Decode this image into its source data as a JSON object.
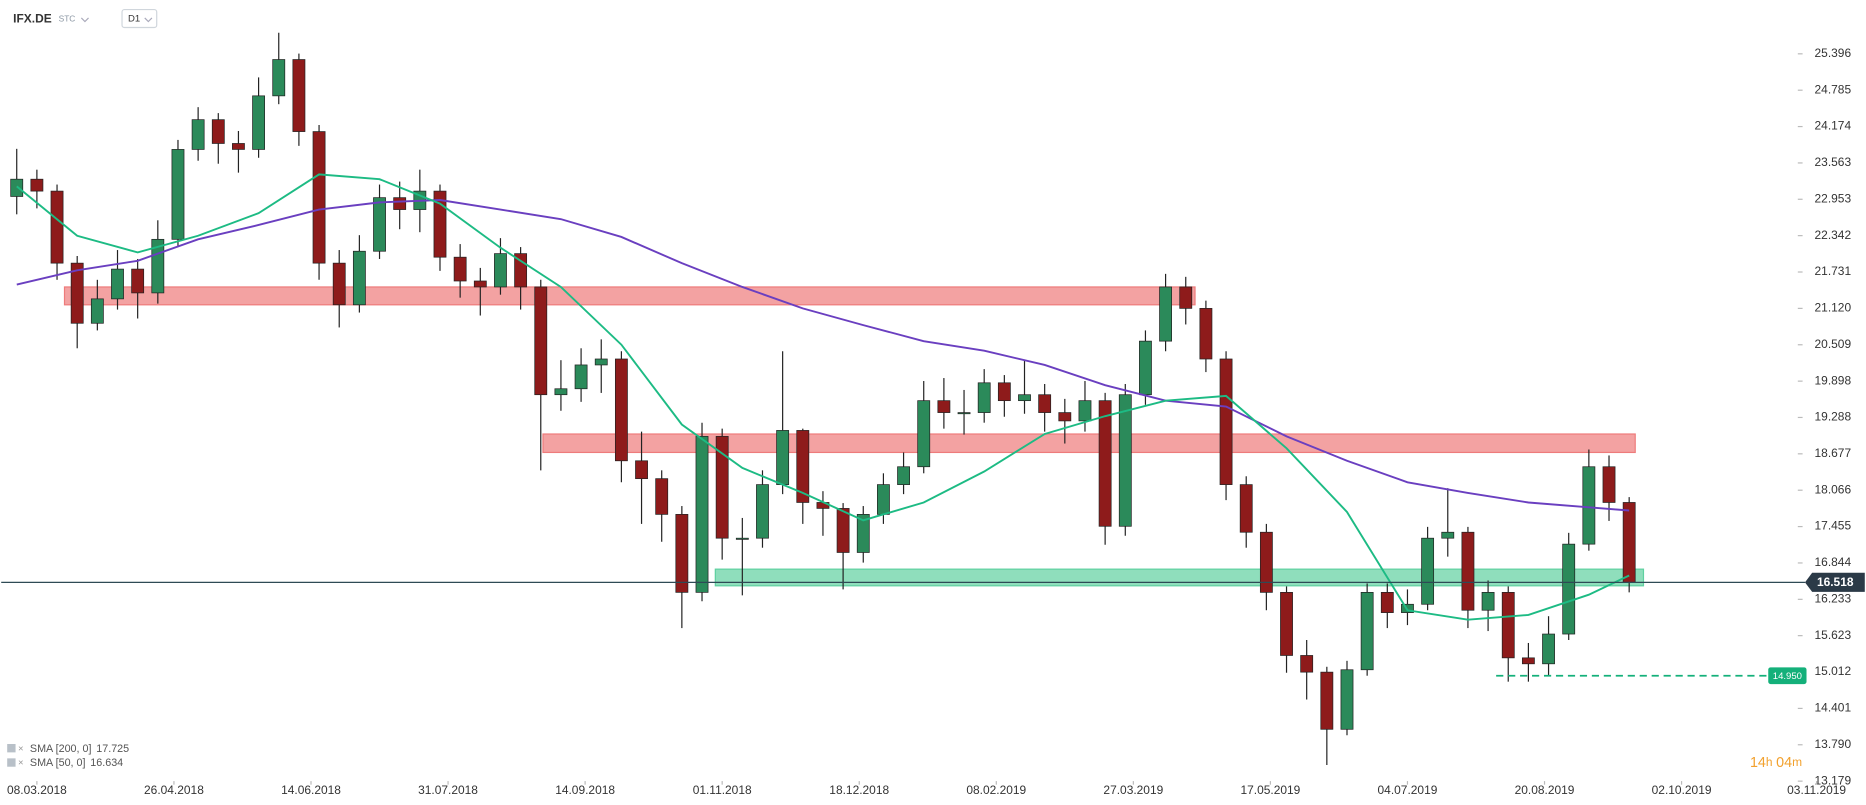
{
  "header": {
    "symbol": "IFX.DE",
    "account": "STC",
    "interval": "D1"
  },
  "countdown": [
    "14",
    "h",
    "04",
    "m"
  ],
  "chart_data": {
    "type": "candlestick",
    "up_color": "#2b8a5a",
    "down_color": "#8e1b1b",
    "xlim": [
      -0.77,
      91.69
    ],
    "ylim": [
      13.14,
      26.3
    ],
    "xticks": [
      {
        "value": 1,
        "label": "08.03.2018"
      },
      {
        "value": 7.8,
        "label": "26.04.2018"
      },
      {
        "value": 14.6,
        "label": "14.06.2018"
      },
      {
        "value": 21.4,
        "label": "31.07.2018"
      },
      {
        "value": 28.2,
        "label": "14.09.2018"
      },
      {
        "value": 35,
        "label": "01.11.2018"
      },
      {
        "value": 41.8,
        "label": "18.12.2018"
      },
      {
        "value": 48.6,
        "label": "08.02.2019"
      },
      {
        "value": 55.4,
        "label": "27.03.2019"
      },
      {
        "value": 62.2,
        "label": "17.05.2019"
      },
      {
        "value": 69,
        "label": "04.07.2019"
      },
      {
        "value": 75.8,
        "label": "20.08.2019"
      },
      {
        "value": 82.6,
        "label": "02.10.2019"
      },
      {
        "value": 89.3,
        "label": "03.11.2019"
      }
    ],
    "yticks": [
      25.396,
      24.785,
      24.174,
      23.563,
      22.953,
      22.342,
      21.731,
      {
        "value": 21.12,
        "label": "21.120"
      },
      20.509,
      19.898,
      19.288,
      18.677,
      18.066,
      17.455,
      16.844,
      16.233,
      15.623,
      15.012,
      14.401,
      {
        "value": 13.79,
        "label": "13.790"
      },
      13.179
    ],
    "x": [
      0,
      1,
      2,
      3,
      4,
      5,
      6,
      7,
      8,
      9,
      10,
      11,
      12,
      13,
      14,
      15,
      16,
      17,
      18,
      19,
      20,
      21,
      22,
      23,
      24,
      25,
      26,
      27,
      28,
      29,
      30,
      31,
      32,
      33,
      34,
      35,
      36,
      37,
      38,
      39,
      40,
      41,
      42,
      43,
      44,
      45,
      46,
      47,
      48,
      49,
      50,
      51,
      52,
      53,
      54,
      55,
      56,
      57,
      58,
      59,
      60,
      61,
      62,
      63,
      64,
      65,
      66,
      67,
      68,
      69,
      70,
      71,
      72,
      73,
      74,
      75,
      76,
      77,
      78,
      79,
      80
    ],
    "open": [
      23.0,
      23.29,
      23.09,
      21.88,
      20.87,
      21.28,
      21.78,
      21.38,
      22.28,
      23.79,
      24.29,
      23.89,
      23.79,
      24.69,
      25.3,
      24.09,
      21.88,
      21.18,
      22.08,
      22.98,
      22.78,
      23.09,
      21.98,
      21.58,
      21.48,
      22.04,
      21.48,
      19.67,
      19.77,
      20.17,
      20.27,
      18.56,
      18.26,
      17.66,
      16.35,
      18.97,
      17.26,
      17.26,
      18.16,
      19.07,
      17.86,
      17.76,
      17.02,
      17.66,
      18.16,
      18.46,
      19.57,
      19.37,
      19.37,
      19.87,
      19.57,
      19.67,
      19.37,
      19.23,
      19.57,
      17.46,
      19.67,
      20.57,
      21.48,
      21.12,
      20.27,
      18.16,
      17.36,
      16.35,
      15.29,
      15.01,
      14.05,
      15.05,
      16.35,
      16.01,
      16.15,
      17.26,
      17.36,
      16.05,
      16.35,
      15.25,
      15.15,
      15.65,
      17.16,
      18.46,
      17.86
    ],
    "high": [
      23.8,
      23.45,
      23.2,
      22.0,
      21.6,
      22.1,
      21.95,
      22.6,
      23.95,
      24.5,
      24.4,
      24.1,
      25.0,
      25.75,
      25.4,
      24.2,
      22.1,
      22.35,
      23.2,
      23.25,
      23.45,
      23.2,
      22.2,
      21.8,
      22.3,
      22.15,
      21.6,
      20.25,
      20.45,
      20.6,
      20.4,
      19.05,
      18.4,
      17.8,
      19.2,
      19.1,
      17.6,
      18.4,
      20.4,
      19.1,
      18.05,
      17.85,
      17.8,
      18.35,
      18.7,
      19.9,
      19.95,
      19.75,
      20.1,
      20.0,
      20.25,
      19.85,
      19.6,
      19.9,
      19.7,
      19.85,
      20.75,
      21.7,
      21.65,
      21.25,
      20.4,
      18.3,
      17.5,
      16.45,
      15.55,
      15.1,
      15.2,
      16.5,
      16.5,
      16.4,
      17.45,
      18.1,
      17.45,
      16.55,
      16.45,
      15.5,
      15.95,
      17.35,
      18.75,
      18.65,
      17.95
    ],
    "low": [
      22.7,
      22.8,
      21.6,
      20.45,
      20.75,
      21.1,
      20.95,
      21.2,
      22.15,
      23.6,
      23.55,
      23.4,
      23.65,
      24.55,
      23.85,
      21.6,
      20.8,
      21.05,
      21.95,
      22.45,
      22.4,
      21.75,
      21.3,
      21.0,
      21.35,
      21.1,
      18.4,
      19.4,
      19.55,
      19.7,
      18.2,
      17.5,
      17.2,
      15.75,
      16.2,
      16.9,
      16.3,
      17.1,
      18.0,
      17.5,
      17.3,
      16.4,
      16.85,
      17.5,
      18.0,
      18.35,
      19.1,
      19.0,
      19.2,
      19.3,
      19.35,
      19.05,
      18.85,
      19.05,
      17.15,
      17.3,
      19.5,
      20.4,
      20.85,
      20.05,
      17.9,
      17.1,
      16.05,
      15.0,
      14.55,
      13.45,
      13.95,
      14.95,
      15.75,
      15.8,
      16.05,
      16.95,
      15.75,
      15.7,
      14.85,
      14.85,
      14.95,
      15.55,
      17.05,
      17.55,
      16.35
    ],
    "close": [
      23.29,
      23.09,
      21.88,
      20.87,
      21.28,
      21.78,
      21.38,
      22.28,
      23.79,
      24.29,
      23.89,
      23.79,
      24.69,
      25.3,
      24.09,
      21.88,
      21.18,
      22.08,
      22.98,
      22.78,
      23.09,
      21.98,
      21.58,
      21.48,
      22.04,
      21.48,
      19.67,
      19.77,
      20.17,
      20.27,
      18.56,
      18.26,
      17.66,
      16.35,
      18.97,
      17.26,
      17.26,
      18.16,
      19.07,
      17.86,
      17.76,
      17.02,
      17.66,
      18.16,
      18.46,
      19.57,
      19.37,
      19.37,
      19.87,
      19.57,
      19.67,
      19.37,
      19.23,
      19.57,
      17.46,
      19.67,
      20.57,
      21.48,
      21.12,
      20.27,
      18.16,
      17.36,
      16.35,
      15.29,
      15.01,
      14.05,
      15.05,
      16.35,
      16.01,
      16.15,
      17.26,
      17.36,
      16.05,
      16.35,
      15.25,
      15.15,
      15.65,
      17.16,
      18.46,
      17.86,
      16.52
    ],
    "series": [
      {
        "name": "SMA [200, 0]",
        "color": "#6a3fc0",
        "last_value": 17.725,
        "x": [
          0,
          3,
          6,
          9,
          12,
          15,
          18,
          21,
          24,
          27,
          30,
          33,
          36,
          39,
          42,
          45,
          48,
          51,
          54,
          57,
          60,
          63,
          66,
          69,
          72,
          75,
          78,
          80
        ],
        "values": [
          21.52,
          21.76,
          21.92,
          22.28,
          22.52,
          22.78,
          22.9,
          22.94,
          22.78,
          22.62,
          22.32,
          21.88,
          21.48,
          21.12,
          20.84,
          20.57,
          20.41,
          20.17,
          19.83,
          19.57,
          19.47,
          18.97,
          18.56,
          18.2,
          18.02,
          17.86,
          17.78,
          17.725
        ]
      },
      {
        "name": "SMA [50, 0]",
        "color": "#1dbb84",
        "last_value": 16.634,
        "x": [
          0,
          3,
          6,
          9,
          12,
          15,
          18,
          21,
          24,
          27,
          30,
          33,
          36,
          39,
          42,
          45,
          48,
          51,
          54,
          57,
          60,
          63,
          66,
          69,
          72,
          75,
          78,
          80
        ],
        "values": [
          23.17,
          22.34,
          22.06,
          22.34,
          22.72,
          23.37,
          23.29,
          22.88,
          22.14,
          21.48,
          20.51,
          19.17,
          18.44,
          18.02,
          17.56,
          17.86,
          18.38,
          19.01,
          19.31,
          19.57,
          19.65,
          18.77,
          17.7,
          16.05,
          15.89,
          15.97,
          16.31,
          16.634
        ]
      }
    ],
    "zones": [
      {
        "x": [
          2.37,
          58.46
        ],
        "y": [
          21.18,
          21.48
        ],
        "color": "#ee7b7b"
      },
      {
        "x": [
          26.11,
          80.3
        ],
        "y": [
          18.7,
          19.01
        ],
        "color": "#ee7b7b"
      },
      {
        "x": [
          34.66,
          80.71
        ],
        "y": [
          16.46,
          16.74
        ],
        "color": "#5fd0a0"
      }
    ],
    "last_price": 16.518,
    "alert": {
      "value": 14.95,
      "label": "14.950",
      "x": [
        73.4,
        86.9
      ],
      "color": "#14b07a"
    }
  }
}
